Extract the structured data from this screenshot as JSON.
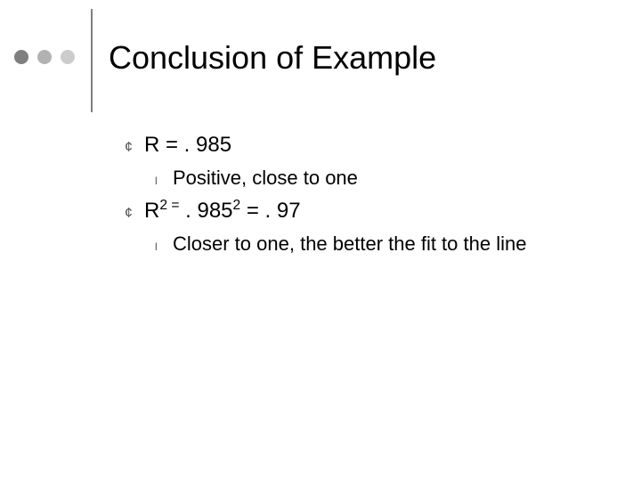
{
  "slide": {
    "title": "Conclusion of Example",
    "decor": {
      "dot_colors": [
        "#7f7f7f",
        "#b2b2b2",
        "#cccccc"
      ],
      "rule_color": "#7f7f7f"
    },
    "bullet_chars": {
      "l1": "¢",
      "l2": "l"
    },
    "items": [
      {
        "text_html": "R = . 985",
        "children": [
          {
            "text_html": "Positive, close to one"
          }
        ]
      },
      {
        "text_html": "R<sup>2 =</sup> . 985<sup>2</sup> = . 97",
        "children": [
          {
            "text_html": "Closer to one, the better the fit to the line"
          }
        ]
      }
    ]
  }
}
